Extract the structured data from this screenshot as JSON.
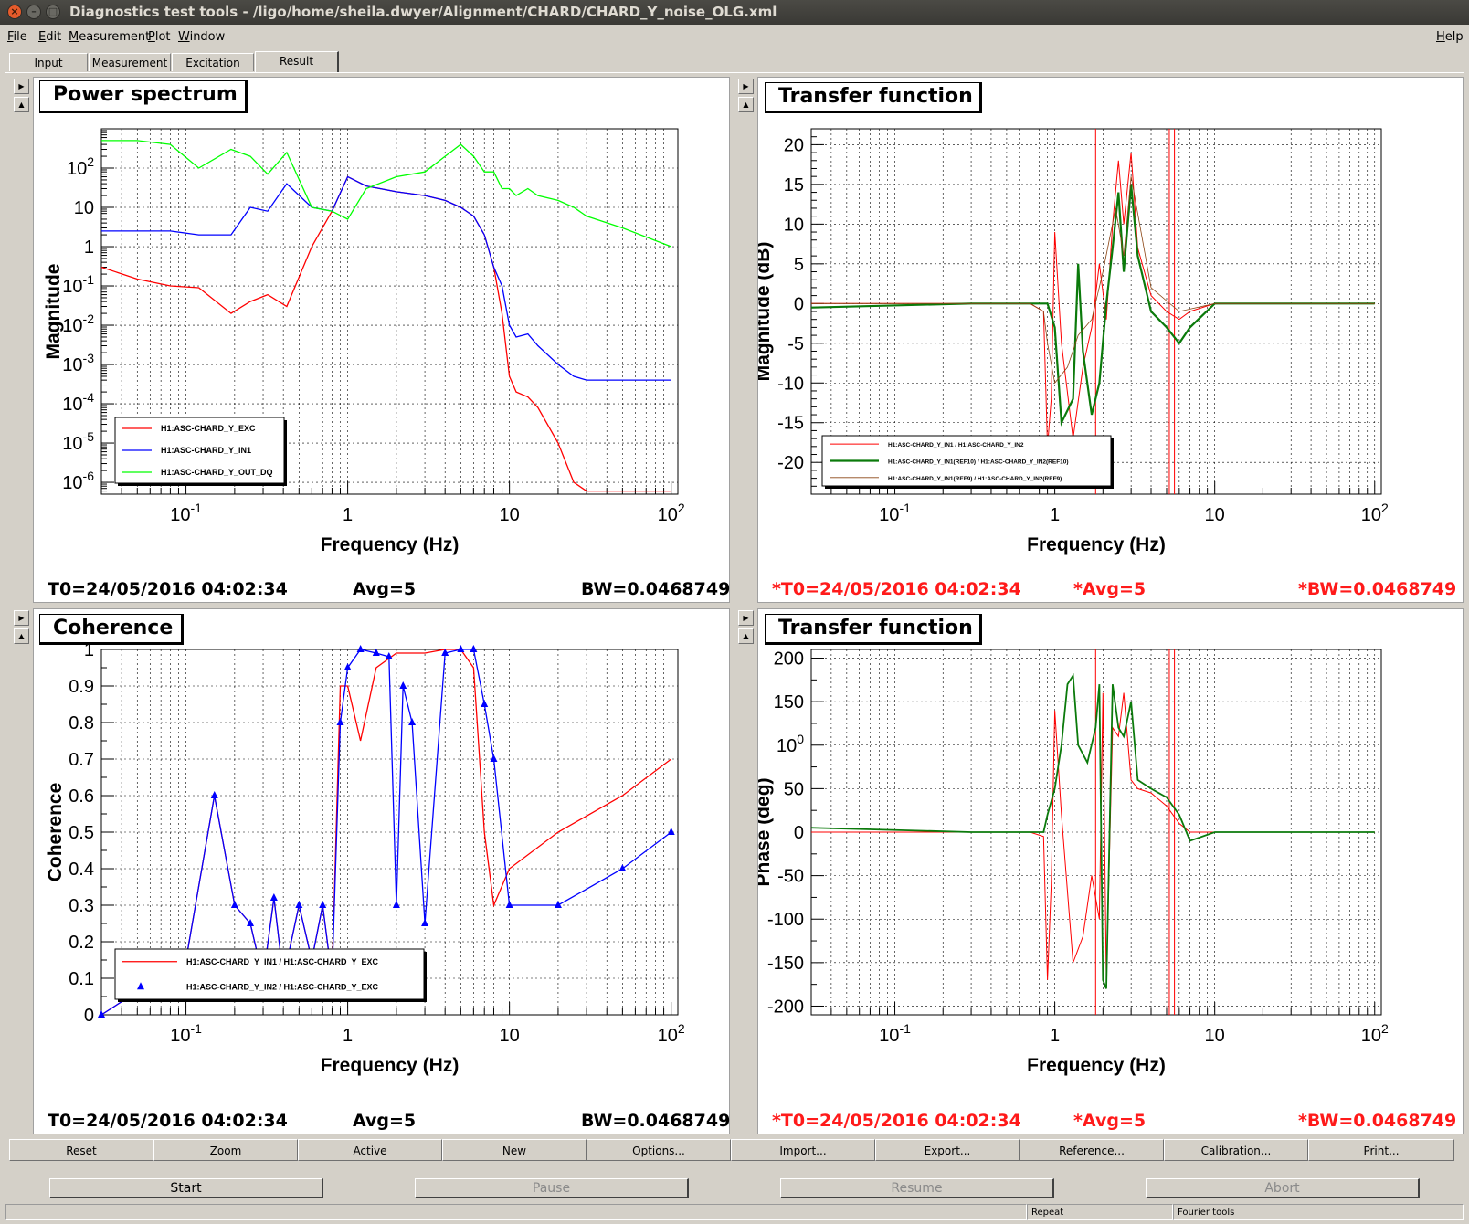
{
  "window": {
    "title": "Diagnostics test tools - /ligo/home/sheila.dwyer/Alignment/CHARD/CHARD_Y_noise_OLG.xml"
  },
  "menu": {
    "items": [
      "File",
      "Edit",
      "Measurement",
      "Plot",
      "Window"
    ],
    "help": "Help"
  },
  "tabs": [
    {
      "label": "Input"
    },
    {
      "label": "Measurement"
    },
    {
      "label": "Excitation"
    },
    {
      "label": "Result"
    }
  ],
  "active_tab": "Result",
  "panels": [
    {
      "title": "Power spectrum",
      "stats": {
        "t0": "T0=24/05/2016 04:02:34",
        "avg": "Avg=5",
        "bw": "BW=0.0468749"
      }
    },
    {
      "title": "Transfer function",
      "stats": {
        "t0": "*T0=24/05/2016 04:02:34",
        "avg": "*Avg=5",
        "bw": "*BW=0.0468749"
      }
    },
    {
      "title": "Coherence",
      "stats": {
        "t0": "T0=24/05/2016 04:02:34",
        "avg": "Avg=5",
        "bw": "BW=0.0468749"
      }
    },
    {
      "title": "Transfer function",
      "stats": {
        "t0": "*T0=24/05/2016 04:02:34",
        "avg": "*Avg=5",
        "bw": "*BW=0.0468749"
      }
    }
  ],
  "chart_data": [
    {
      "type": "line",
      "xlabel": "Frequency (Hz)",
      "ylabel": "Magnitude",
      "xscale": "log",
      "yscale": "log",
      "xlim": [
        0.03,
        110
      ],
      "ylim": [
        5e-07,
        1000
      ],
      "x_ticks": [
        "10-1",
        "1",
        "10",
        "102"
      ],
      "y_ticks": [
        "102",
        "10",
        "1",
        "10-1",
        "10-2",
        "10-3",
        "10-4",
        "10-5",
        "10-6"
      ],
      "grid": true,
      "legend_position": "bottom-left",
      "series": [
        {
          "name": "H1:ASC-CHARD_Y_EXC",
          "color": "#ff0000",
          "x": [
            0.03,
            0.05,
            0.08,
            0.12,
            0.19,
            0.25,
            0.32,
            0.42,
            0.6,
            0.8,
            1.0,
            1.3,
            2.0,
            3.0,
            4.0,
            5.0,
            6.0,
            7.0,
            8.0,
            9.0,
            10,
            11,
            13,
            15,
            20,
            25,
            30,
            50,
            100
          ],
          "y": [
            0.3,
            0.15,
            0.1,
            0.09,
            0.02,
            0.04,
            0.06,
            0.03,
            1.0,
            8,
            60,
            35,
            25,
            20,
            15,
            10,
            6,
            2,
            0.3,
            0.02,
            0.0005,
            0.0002,
            0.00015,
            8e-05,
            1e-05,
            1e-06,
            6e-07,
            6e-07,
            6e-07
          ]
        },
        {
          "name": "H1:ASC-CHARD_Y_IN1",
          "color": "#0000ff",
          "x": [
            0.03,
            0.05,
            0.08,
            0.12,
            0.19,
            0.25,
            0.32,
            0.42,
            0.6,
            0.8,
            1.0,
            1.3,
            2.0,
            3.0,
            4.0,
            5.0,
            6.0,
            7.0,
            8.0,
            9.0,
            10,
            11,
            13,
            15,
            20,
            25,
            30,
            50,
            100
          ],
          "y": [
            2.5,
            2.5,
            2.5,
            2.0,
            2.0,
            10,
            8,
            40,
            10,
            8,
            60,
            35,
            25,
            20,
            15,
            10,
            6,
            2,
            0.3,
            0.1,
            0.01,
            0.005,
            0.006,
            0.003,
            0.001,
            0.0005,
            0.0004,
            0.0004,
            0.0004
          ]
        },
        {
          "name": "H1:ASC-CHARD_Y_OUT_DQ",
          "color": "#00ff00",
          "x": [
            0.03,
            0.05,
            0.08,
            0.12,
            0.19,
            0.25,
            0.32,
            0.42,
            0.6,
            0.8,
            1.0,
            1.3,
            2.0,
            3.0,
            4.0,
            5.0,
            6.0,
            7.0,
            8.0,
            9.0,
            10,
            11,
            13,
            15,
            20,
            25,
            30,
            50,
            100
          ],
          "y": [
            500,
            500,
            400,
            100,
            300,
            200,
            70,
            250,
            10,
            8,
            5,
            30,
            60,
            80,
            200,
            400,
            200,
            80,
            80,
            30,
            30,
            20,
            30,
            20,
            15,
            10,
            6,
            3,
            1
          ]
        }
      ]
    },
    {
      "type": "line",
      "xlabel": "Frequency (Hz)",
      "ylabel": "Magnitude (dB)",
      "xscale": "log",
      "xlim": [
        0.03,
        110
      ],
      "ylim": [
        -24,
        22
      ],
      "x_ticks": [
        "10-1",
        "1",
        "10",
        "102"
      ],
      "y_ticks": [
        "20",
        "15",
        "10",
        "5",
        "0",
        "-5",
        "-10",
        "-15",
        "-20"
      ],
      "grid": true,
      "legend_position": "bottom-left",
      "series": [
        {
          "name": "H1:ASC-CHARD_Y_IN1 / H1:ASC-CHARD_Y_IN2",
          "color": "#ff0000",
          "x": [
            0.03,
            0.3,
            0.7,
            0.85,
            0.9,
            0.95,
            1.0,
            1.1,
            1.3,
            1.5,
            1.7,
            1.9,
            2.1,
            2.3,
            2.5,
            2.7,
            3.0,
            3.3,
            4.0,
            5.0,
            6.0,
            7.0,
            10,
            20,
            100
          ],
          "y": [
            0,
            0,
            0,
            -1,
            -18,
            -12,
            9,
            -5,
            -17,
            -8,
            -3,
            5,
            -2,
            10,
            18,
            10,
            19,
            7,
            1,
            -1,
            -2,
            -1,
            0,
            0,
            0
          ]
        },
        {
          "name": "H1:ASC-CHARD_Y_IN1(REF10) / H1:ASC-CHARD_Y_IN2(REF10)",
          "color": "#0b7a0b",
          "x": [
            0.03,
            0.3,
            0.7,
            0.85,
            0.9,
            1.0,
            1.1,
            1.3,
            1.4,
            1.5,
            1.7,
            1.9,
            2.1,
            2.3,
            2.5,
            2.7,
            3.0,
            3.3,
            4.0,
            5.0,
            6.0,
            7.0,
            10,
            20,
            100
          ],
          "y": [
            -0.5,
            0,
            0,
            0,
            0,
            -3,
            -15,
            -12,
            5,
            -6,
            -14,
            -10,
            0,
            7,
            14,
            4,
            15,
            6,
            -1,
            -3,
            -5,
            -3,
            0,
            0,
            0
          ]
        },
        {
          "name": "H1:ASC-CHARD_Y_IN1(REF9) / H1:ASC-CHARD_Y_IN2(REF9)",
          "color": "#8b4513",
          "x": [
            0.03,
            0.3,
            0.7,
            0.85,
            0.9,
            1.0,
            1.2,
            1.4,
            1.7,
            2.0,
            2.4,
            2.7,
            3.0,
            4.0,
            6.0,
            10,
            100
          ],
          "y": [
            0,
            0,
            0,
            -1,
            -5,
            -10,
            -8,
            -4,
            -2,
            4,
            12,
            6,
            16,
            2,
            -1,
            0,
            0
          ]
        }
      ]
    },
    {
      "type": "line",
      "xlabel": "Frequency (Hz)",
      "ylabel": "Coherence",
      "xscale": "log",
      "xlim": [
        0.03,
        110
      ],
      "ylim": [
        0,
        1
      ],
      "x_ticks": [
        "10-1",
        "1",
        "10",
        "102"
      ],
      "y_ticks": [
        "1",
        "0.9",
        "0.8",
        "0.7",
        "0.6",
        "0.5",
        "0.4",
        "0.3",
        "0.2",
        "0.1",
        "0"
      ],
      "grid": true,
      "legend_position": "bottom-left",
      "series": [
        {
          "name": "H1:ASC-CHARD_Y_IN1 / H1:ASC-CHARD_Y_EXC",
          "color": "#ff0000",
          "x": [
            0.03,
            0.1,
            0.15,
            0.2,
            0.25,
            0.3,
            0.35,
            0.4,
            0.5,
            0.6,
            0.7,
            0.8,
            0.9,
            1.0,
            1.2,
            1.5,
            2.0,
            3.0,
            4.0,
            5.0,
            6.0,
            7.0,
            8.0,
            10,
            20,
            50,
            100
          ],
          "y": [
            0,
            0.15,
            0.6,
            0.3,
            0.25,
            0.1,
            0.32,
            0.1,
            0.3,
            0.15,
            0.3,
            0.1,
            0.9,
            0.9,
            0.75,
            0.95,
            0.99,
            0.99,
            1.0,
            1.0,
            0.95,
            0.5,
            0.3,
            0.4,
            0.5,
            0.6,
            0.7
          ]
        },
        {
          "name": "H1:ASC-CHARD_Y_IN2 / H1:ASC-CHARD_Y_EXC",
          "color": "#0000ff",
          "x": [
            0.03,
            0.1,
            0.15,
            0.2,
            0.25,
            0.3,
            0.35,
            0.4,
            0.5,
            0.6,
            0.7,
            0.8,
            0.9,
            1.0,
            1.2,
            1.5,
            1.8,
            2.0,
            2.2,
            2.5,
            3.0,
            4.0,
            5.0,
            6.0,
            7.0,
            8.0,
            10,
            20,
            50,
            100
          ],
          "y": [
            0,
            0.15,
            0.6,
            0.3,
            0.25,
            0.1,
            0.32,
            0.1,
            0.3,
            0.15,
            0.3,
            0.1,
            0.8,
            0.95,
            1.0,
            0.99,
            0.98,
            0.3,
            0.9,
            0.8,
            0.25,
            0.99,
            1.0,
            1.0,
            0.85,
            0.7,
            0.3,
            0.3,
            0.4,
            0.5
          ]
        }
      ]
    },
    {
      "type": "line",
      "xlabel": "Frequency (Hz)",
      "ylabel": "Phase (deg)",
      "xscale": "log",
      "xlim": [
        0.03,
        110
      ],
      "ylim": [
        -210,
        210
      ],
      "x_ticks": [
        "10-1",
        "1",
        "10",
        "102"
      ],
      "y_ticks": [
        "200",
        "150",
        "100",
        "50",
        "0",
        "-50",
        "-100",
        "-150",
        "-200"
      ],
      "grid": true,
      "series": [
        {
          "color": "#ff0000",
          "x": [
            0.03,
            0.3,
            0.7,
            0.85,
            0.9,
            0.95,
            1.0,
            1.1,
            1.3,
            1.5,
            1.7,
            1.9,
            2.0,
            2.1,
            2.3,
            2.5,
            2.7,
            3.0,
            3.3,
            4.0,
            5.0,
            6.0,
            7.0,
            10,
            20,
            100
          ],
          "y": [
            0,
            0,
            0,
            -5,
            -170,
            -60,
            140,
            20,
            -150,
            -120,
            -50,
            -100,
            160,
            -170,
            120,
            110,
            160,
            60,
            50,
            45,
            30,
            10,
            0,
            0,
            0,
            0
          ]
        },
        {
          "color": "#0b7a0b",
          "x": [
            0.03,
            0.3,
            0.7,
            0.85,
            0.9,
            1.0,
            1.1,
            1.2,
            1.3,
            1.4,
            1.6,
            1.8,
            1.9,
            2.0,
            2.1,
            2.3,
            2.5,
            2.7,
            3.0,
            3.3,
            4.0,
            5.0,
            6.0,
            7.0,
            10,
            20,
            100
          ],
          "y": [
            5,
            0,
            0,
            0,
            20,
            50,
            100,
            170,
            180,
            100,
            80,
            120,
            170,
            -170,
            -180,
            170,
            120,
            110,
            150,
            60,
            50,
            40,
            20,
            -10,
            0,
            0,
            0
          ]
        }
      ]
    }
  ],
  "toolbar": [
    "Reset",
    "Zoom",
    "Active",
    "New",
    "Options...",
    "Import...",
    "Export...",
    "Reference...",
    "Calibration...",
    "Print..."
  ],
  "controls": [
    "Start",
    "Pause",
    "Resume",
    "Abort"
  ],
  "statusbar": [
    "Repeat",
    "Fourier tools"
  ]
}
